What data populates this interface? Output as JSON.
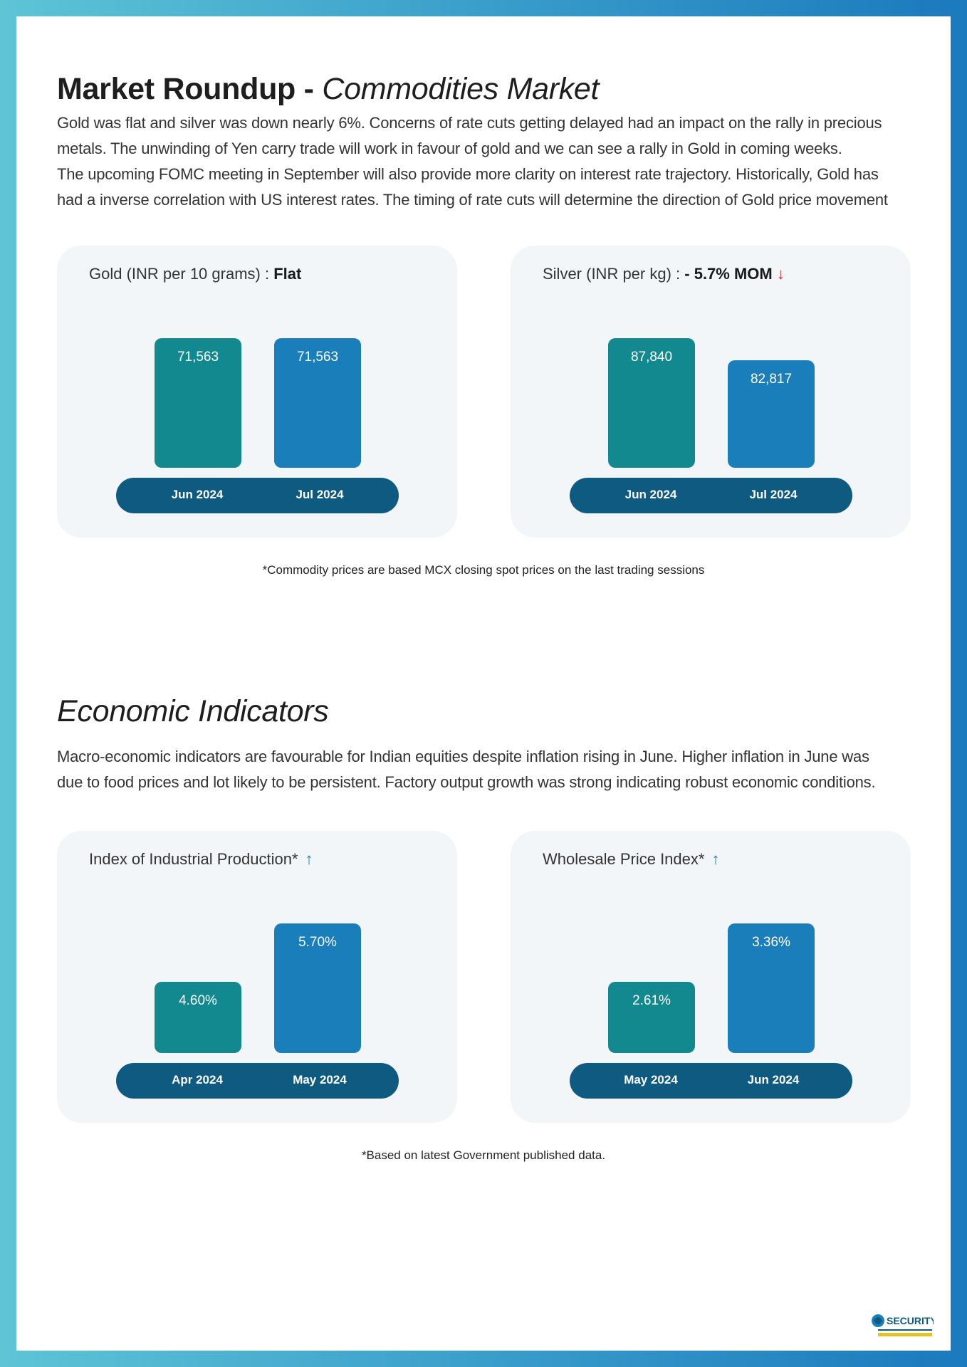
{
  "commodities": {
    "title_bold": "Market Roundup - ",
    "title_italic": "Commodities Market",
    "paragraph": [
      "Gold was flat and silver was down nearly 6%. Concerns of rate cuts getting delayed had an impact on the rally in precious",
      "metals. The unwinding of Yen carry trade will work in favour of gold and we can see a rally in Gold in coming weeks.",
      "The upcoming FOMC meeting in September will also provide more clarity on interest rate trajectory. Historically, Gold has",
      "had a inverse correlation with US interest rates. The timing of rate cuts will determine the direction of Gold price movement"
    ],
    "note": "*Commodity prices are based MCX closing spot prices on the last trading sessions"
  },
  "economic": {
    "title": "Economic Indicators",
    "paragraph": [
      "Macro-economic indicators are favourable for Indian equities despite inflation rising in June. Higher inflation in June was",
      "due to food prices and lot likely to be persistent. Factory output growth was strong indicating robust economic conditions."
    ],
    "note": "*Based on latest Government published data."
  },
  "cards": {
    "gold": {
      "title": "Gold (INR per 10 grams) : ",
      "status": "Flat"
    },
    "silver": {
      "title": "Silver (INR per kg) : ",
      "status": "- 5.7% MOM",
      "arrow": "↓"
    },
    "iip": {
      "title": "Index of Industrial Production*",
      "arrow": "↑"
    },
    "wpi": {
      "title": "Wholesale Price Index*",
      "arrow": "↑"
    }
  },
  "colors": {
    "bar_prev": "#12898f",
    "bar_curr": "#1a7ebb",
    "axis_pill": "#0f5a80",
    "down_arrow": "#c62828",
    "up_arrow": "#1b79bd"
  },
  "logo_text": "SECURITY",
  "chart_data": [
    {
      "type": "bar",
      "title": "Gold (INR per 10 grams) : Flat",
      "categories": [
        "Jun 2024",
        "Jul 2024"
      ],
      "values": [
        71563,
        71563
      ],
      "value_labels": [
        "71,563",
        "71,563"
      ]
    },
    {
      "type": "bar",
      "title": "Silver (INR per kg) : - 5.7% MOM",
      "categories": [
        "Jun 2024",
        "Jul 2024"
      ],
      "values": [
        87840,
        82817
      ],
      "value_labels": [
        "87,840",
        "82,817"
      ]
    },
    {
      "type": "bar",
      "title": "Index of Industrial Production*",
      "categories": [
        "Apr 2024",
        "May 2024"
      ],
      "values": [
        4.6,
        5.7
      ],
      "value_labels": [
        "4.60%",
        "5.70%"
      ]
    },
    {
      "type": "bar",
      "title": "Wholesale Price Index*",
      "categories": [
        "May 2024",
        "Jun 2024"
      ],
      "values": [
        2.61,
        3.36
      ],
      "value_labels": [
        "2.61%",
        "3.36%"
      ]
    }
  ]
}
